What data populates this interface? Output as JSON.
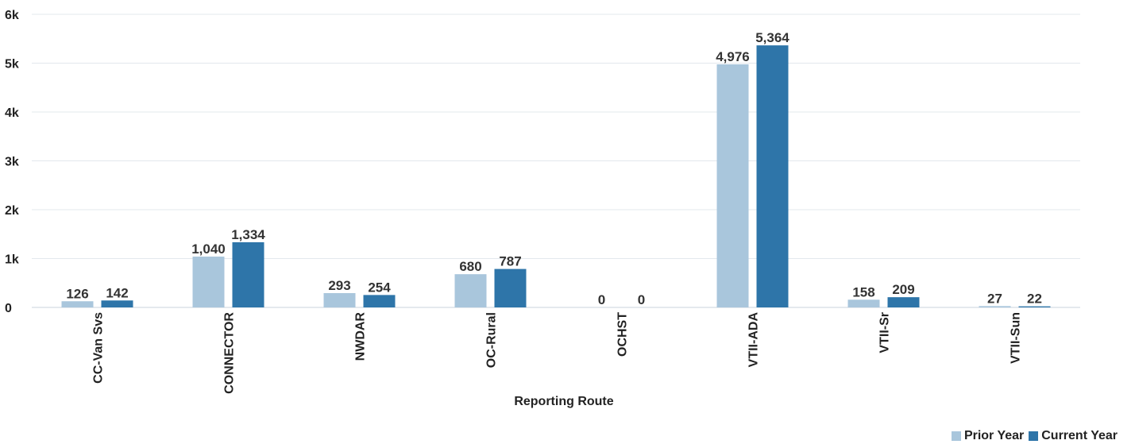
{
  "chart_data": {
    "type": "bar",
    "xlabel": "Reporting Route",
    "ylabel": "",
    "categories": [
      "CC-Van Svs",
      "CONNECTOR",
      "NWDAR",
      "OC-Rural",
      "OCHST",
      "VTII-ADA",
      "VTII-Sr",
      "VTII-Sun"
    ],
    "series": [
      {
        "name": "Prior Year",
        "color": "#a9c6dc",
        "values": [
          126,
          1040,
          293,
          680,
          0,
          4976,
          158,
          27
        ],
        "labels": [
          "126",
          "1,040",
          "293",
          "680",
          "0",
          "4,976",
          "158",
          "27"
        ]
      },
      {
        "name": "Current Year",
        "color": "#2e75a9",
        "values": [
          142,
          1334,
          254,
          787,
          0,
          5364,
          209,
          22
        ],
        "labels": [
          "142",
          "1,334",
          "254",
          "787",
          "0",
          "5,364",
          "209",
          "22"
        ]
      }
    ],
    "ylim": [
      0,
      6000
    ],
    "yticks": [
      0,
      1000,
      2000,
      3000,
      4000,
      5000,
      6000
    ],
    "ytick_labels": [
      "0",
      "1k",
      "2k",
      "3k",
      "4k",
      "5k",
      "6k"
    ],
    "grid": true,
    "legend_position": "bottom-right"
  }
}
